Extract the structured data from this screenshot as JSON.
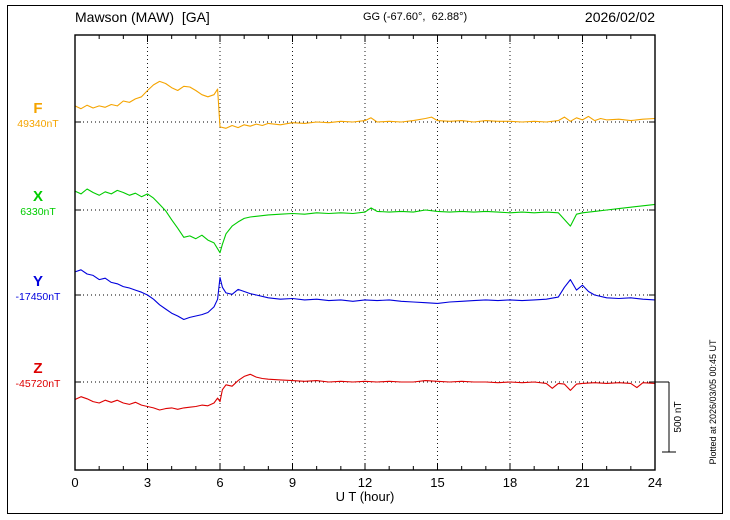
{
  "chart_data": {
    "type": "line",
    "title": "Mawson (MAW)  [GA]",
    "coords_label": "GG (-67.60°,  62.88°)",
    "date": "2026/02/02",
    "xlabel": "U T (hour)",
    "x_range": [
      0,
      24
    ],
    "x_minor_step": 1,
    "x_ticks": [
      0,
      3,
      6,
      9,
      12,
      15,
      18,
      21,
      24
    ],
    "grid": "dotted",
    "scale_bar": {
      "label": "500 nT",
      "nT": 500
    },
    "plotted_at": "Plotted at 2026/03/05 00:45 UT",
    "offset_unit": "nT from baseline",
    "series": [
      {
        "name": "F",
        "baseline_label": "49340nT",
        "baseline_nT": 49340,
        "color": "#f5a400",
        "points": [
          [
            0,
            115
          ],
          [
            0.25,
            95
          ],
          [
            0.5,
            120
          ],
          [
            0.75,
            100
          ],
          [
            1,
            115
          ],
          [
            1.25,
            105
          ],
          [
            1.5,
            125
          ],
          [
            1.75,
            115
          ],
          [
            2,
            150
          ],
          [
            2.25,
            140
          ],
          [
            2.5,
            165
          ],
          [
            2.75,
            180
          ],
          [
            3,
            225
          ],
          [
            3.25,
            265
          ],
          [
            3.5,
            290
          ],
          [
            3.75,
            275
          ],
          [
            4,
            245
          ],
          [
            4.25,
            225
          ],
          [
            4.5,
            255
          ],
          [
            4.75,
            250
          ],
          [
            5,
            225
          ],
          [
            5.25,
            195
          ],
          [
            5.5,
            180
          ],
          [
            5.75,
            195
          ],
          [
            5.9,
            235
          ],
          [
            6,
            -35
          ],
          [
            6.25,
            -45
          ],
          [
            6.5,
            -25
          ],
          [
            6.75,
            -40
          ],
          [
            7,
            -20
          ],
          [
            7.25,
            -30
          ],
          [
            7.5,
            -15
          ],
          [
            7.75,
            -25
          ],
          [
            8,
            -10
          ],
          [
            8.5,
            -20
          ],
          [
            9,
            -5
          ],
          [
            9.5,
            -10
          ],
          [
            10,
            0
          ],
          [
            10.5,
            -5
          ],
          [
            11,
            5
          ],
          [
            11.5,
            0
          ],
          [
            12,
            10
          ],
          [
            12.25,
            30
          ],
          [
            12.5,
            0
          ],
          [
            13,
            5
          ],
          [
            13.5,
            0
          ],
          [
            14,
            10
          ],
          [
            14.5,
            25
          ],
          [
            14.75,
            35
          ],
          [
            15,
            10
          ],
          [
            15.5,
            5
          ],
          [
            16,
            10
          ],
          [
            16.5,
            0
          ],
          [
            17,
            10
          ],
          [
            17.5,
            5
          ],
          [
            18,
            5
          ],
          [
            18.5,
            0
          ],
          [
            19,
            5
          ],
          [
            19.5,
            0
          ],
          [
            20,
            10
          ],
          [
            20.25,
            35
          ],
          [
            20.5,
            5
          ],
          [
            20.75,
            30
          ],
          [
            21,
            15
          ],
          [
            21.25,
            40
          ],
          [
            21.5,
            10
          ],
          [
            21.75,
            25
          ],
          [
            22,
            15
          ],
          [
            22.5,
            20
          ],
          [
            23,
            10
          ],
          [
            23.5,
            20
          ],
          [
            24,
            25
          ]
        ]
      },
      {
        "name": "X",
        "baseline_label": "6330nT",
        "baseline_nT": 6330,
        "color": "#00cc00",
        "points": [
          [
            0,
            135
          ],
          [
            0.25,
            115
          ],
          [
            0.5,
            150
          ],
          [
            0.75,
            125
          ],
          [
            1,
            105
          ],
          [
            1.25,
            130
          ],
          [
            1.5,
            115
          ],
          [
            1.75,
            140
          ],
          [
            2,
            125
          ],
          [
            2.25,
            105
          ],
          [
            2.5,
            120
          ],
          [
            2.75,
            95
          ],
          [
            3,
            115
          ],
          [
            3.25,
            85
          ],
          [
            3.5,
            40
          ],
          [
            3.75,
            -5
          ],
          [
            4,
            -70
          ],
          [
            4.25,
            -130
          ],
          [
            4.5,
            -195
          ],
          [
            4.75,
            -185
          ],
          [
            5,
            -205
          ],
          [
            5.25,
            -180
          ],
          [
            5.5,
            -215
          ],
          [
            5.75,
            -235
          ],
          [
            6,
            -305
          ],
          [
            6.1,
            -245
          ],
          [
            6.25,
            -170
          ],
          [
            6.5,
            -115
          ],
          [
            6.75,
            -85
          ],
          [
            7,
            -60
          ],
          [
            7.25,
            -50
          ],
          [
            7.5,
            -45
          ],
          [
            8,
            -35
          ],
          [
            8.5,
            -30
          ],
          [
            9,
            -25
          ],
          [
            9.5,
            -30
          ],
          [
            10,
            -20
          ],
          [
            10.5,
            -25
          ],
          [
            11,
            -20
          ],
          [
            11.5,
            -25
          ],
          [
            12,
            -15
          ],
          [
            12.25,
            15
          ],
          [
            12.5,
            -10
          ],
          [
            13,
            -15
          ],
          [
            13.5,
            -10
          ],
          [
            14,
            -15
          ],
          [
            14.5,
            0
          ],
          [
            15,
            -10
          ],
          [
            15.5,
            -15
          ],
          [
            16,
            -10
          ],
          [
            16.5,
            -15
          ],
          [
            17,
            -10
          ],
          [
            17.5,
            -15
          ],
          [
            18,
            -20
          ],
          [
            18.5,
            -15
          ],
          [
            19,
            -20
          ],
          [
            19.5,
            -15
          ],
          [
            20,
            -20
          ],
          [
            20.5,
            -115
          ],
          [
            20.75,
            -30
          ],
          [
            21,
            -20
          ],
          [
            21.5,
            -10
          ],
          [
            22,
            0
          ],
          [
            22.5,
            10
          ],
          [
            23,
            20
          ],
          [
            23.5,
            30
          ],
          [
            24,
            40
          ]
        ]
      },
      {
        "name": "Y",
        "baseline_label": "-17450nT",
        "baseline_nT": -17450,
        "color": "#0000dd",
        "points": [
          [
            0,
            165
          ],
          [
            0.25,
            180
          ],
          [
            0.5,
            150
          ],
          [
            0.75,
            140
          ],
          [
            1,
            110
          ],
          [
            1.25,
            120
          ],
          [
            1.5,
            90
          ],
          [
            1.75,
            80
          ],
          [
            2,
            60
          ],
          [
            2.25,
            50
          ],
          [
            2.5,
            35
          ],
          [
            2.75,
            20
          ],
          [
            3,
            0
          ],
          [
            3.25,
            -30
          ],
          [
            3.5,
            -70
          ],
          [
            3.75,
            -100
          ],
          [
            4,
            -130
          ],
          [
            4.25,
            -150
          ],
          [
            4.5,
            -175
          ],
          [
            4.75,
            -160
          ],
          [
            5,
            -150
          ],
          [
            5.25,
            -140
          ],
          [
            5.5,
            -125
          ],
          [
            5.75,
            -85
          ],
          [
            5.9,
            -30
          ],
          [
            6,
            125
          ],
          [
            6.1,
            55
          ],
          [
            6.25,
            15
          ],
          [
            6.5,
            5
          ],
          [
            6.75,
            40
          ],
          [
            7,
            25
          ],
          [
            7.25,
            10
          ],
          [
            7.5,
            0
          ],
          [
            8,
            -20
          ],
          [
            8.5,
            -30
          ],
          [
            9,
            -25
          ],
          [
            9.5,
            -35
          ],
          [
            10,
            -30
          ],
          [
            10.5,
            -40
          ],
          [
            11,
            -35
          ],
          [
            11.5,
            -45
          ],
          [
            12,
            -35
          ],
          [
            12.5,
            -40
          ],
          [
            13,
            -35
          ],
          [
            13.5,
            -45
          ],
          [
            14,
            -50
          ],
          [
            14.5,
            -55
          ],
          [
            15,
            -60
          ],
          [
            15.5,
            -50
          ],
          [
            16,
            -45
          ],
          [
            16.5,
            -40
          ],
          [
            17,
            -35
          ],
          [
            17.5,
            -40
          ],
          [
            18,
            -35
          ],
          [
            18.5,
            -40
          ],
          [
            19,
            -35
          ],
          [
            19.5,
            -30
          ],
          [
            20,
            -15
          ],
          [
            20.25,
            55
          ],
          [
            20.5,
            110
          ],
          [
            20.75,
            35
          ],
          [
            21,
            70
          ],
          [
            21.25,
            25
          ],
          [
            21.5,
            0
          ],
          [
            22,
            -20
          ],
          [
            22.5,
            -25
          ],
          [
            23,
            -20
          ],
          [
            23.5,
            -30
          ],
          [
            24,
            -35
          ]
        ]
      },
      {
        "name": "Z",
        "baseline_label": "-45720nT",
        "baseline_nT": -45720,
        "color": "#dd0000",
        "points": [
          [
            0,
            -125
          ],
          [
            0.25,
            -105
          ],
          [
            0.5,
            -120
          ],
          [
            0.75,
            -140
          ],
          [
            1,
            -150
          ],
          [
            1.25,
            -130
          ],
          [
            1.5,
            -145
          ],
          [
            1.75,
            -130
          ],
          [
            2,
            -150
          ],
          [
            2.25,
            -160
          ],
          [
            2.5,
            -145
          ],
          [
            2.75,
            -165
          ],
          [
            3,
            -175
          ],
          [
            3.25,
            -185
          ],
          [
            3.5,
            -200
          ],
          [
            3.75,
            -190
          ],
          [
            4,
            -185
          ],
          [
            4.25,
            -195
          ],
          [
            4.5,
            -185
          ],
          [
            4.75,
            -180
          ],
          [
            5,
            -175
          ],
          [
            5.25,
            -165
          ],
          [
            5.5,
            -170
          ],
          [
            5.75,
            -150
          ],
          [
            5.9,
            -115
          ],
          [
            6,
            -140
          ],
          [
            6.1,
            -55
          ],
          [
            6.25,
            -20
          ],
          [
            6.5,
            -30
          ],
          [
            6.75,
            10
          ],
          [
            7,
            40
          ],
          [
            7.25,
            55
          ],
          [
            7.5,
            35
          ],
          [
            7.75,
            25
          ],
          [
            8,
            20
          ],
          [
            8.5,
            15
          ],
          [
            9,
            10
          ],
          [
            9.5,
            5
          ],
          [
            10,
            10
          ],
          [
            10.5,
            0
          ],
          [
            11,
            5
          ],
          [
            11.5,
            0
          ],
          [
            12,
            5
          ],
          [
            12.5,
            0
          ],
          [
            13,
            5
          ],
          [
            13.5,
            0
          ],
          [
            14,
            0
          ],
          [
            14.5,
            10
          ],
          [
            15,
            5
          ],
          [
            15.5,
            0
          ],
          [
            16,
            5
          ],
          [
            16.5,
            0
          ],
          [
            17,
            0
          ],
          [
            17.5,
            -5
          ],
          [
            18,
            0
          ],
          [
            18.5,
            -5
          ],
          [
            19,
            0
          ],
          [
            19.5,
            -10
          ],
          [
            19.75,
            -45
          ],
          [
            20,
            -10
          ],
          [
            20.25,
            -15
          ],
          [
            20.5,
            -60
          ],
          [
            20.75,
            -15
          ],
          [
            21,
            -10
          ],
          [
            21.5,
            -5
          ],
          [
            22,
            -10
          ],
          [
            22.5,
            -5
          ],
          [
            23,
            -10
          ],
          [
            23.25,
            -40
          ],
          [
            23.5,
            -5
          ],
          [
            24,
            -10
          ]
        ]
      }
    ]
  }
}
